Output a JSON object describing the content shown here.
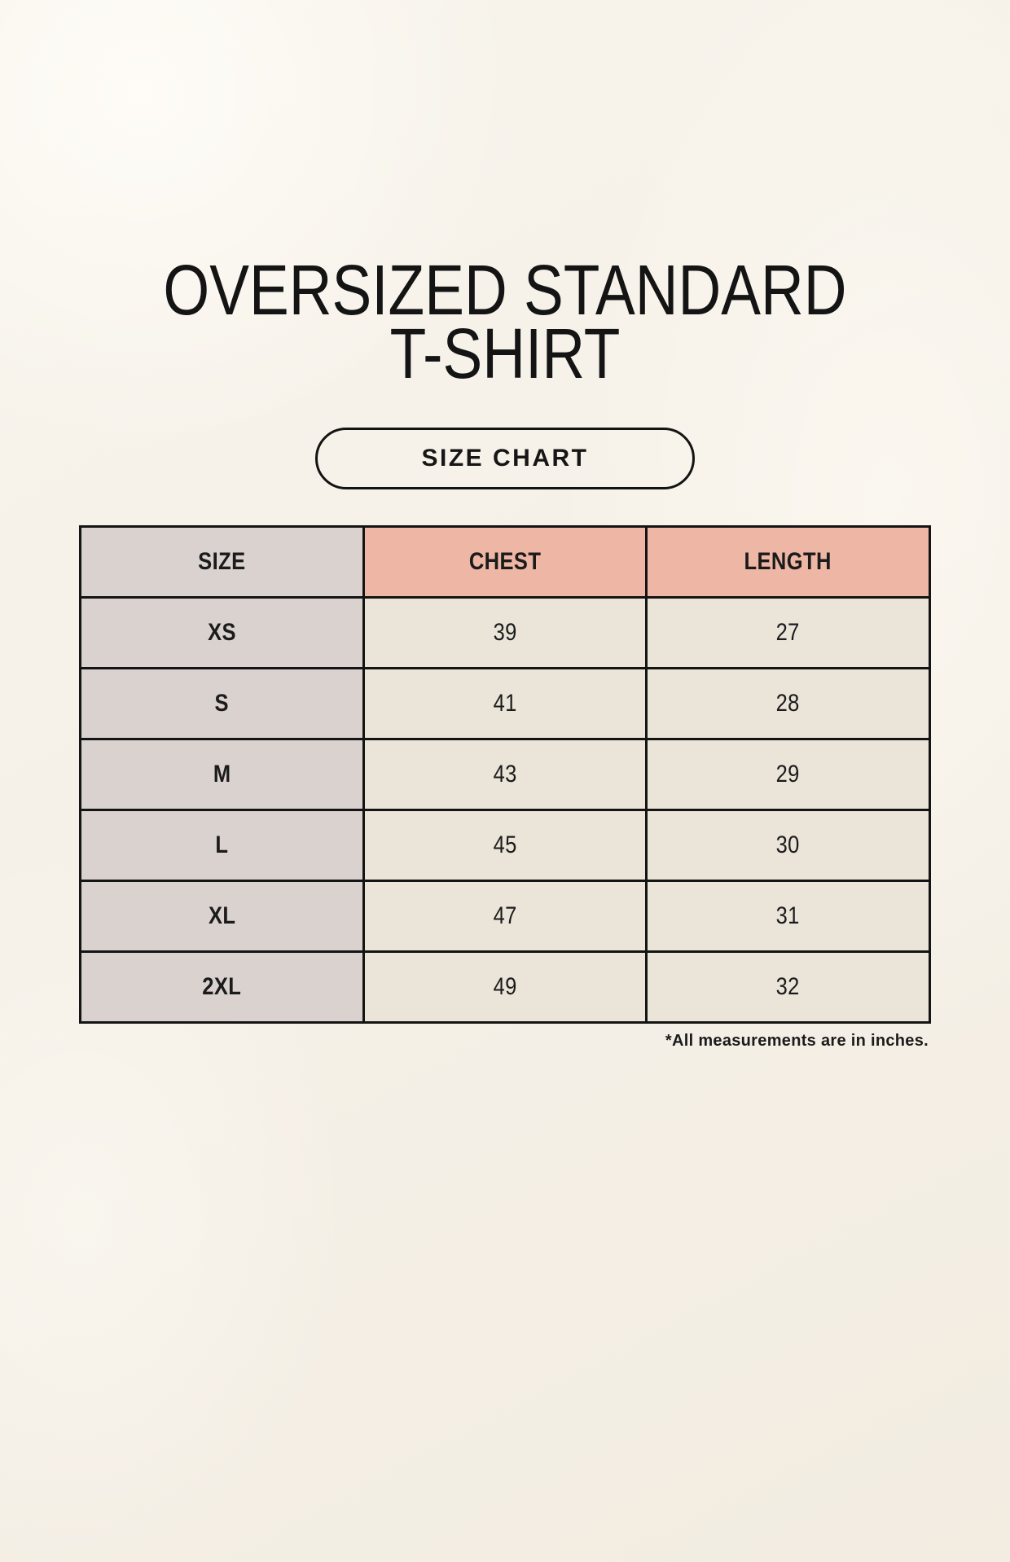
{
  "header": {
    "title_line1": "OVERSIZED STANDARD",
    "title_line2": "T-SHIRT",
    "button_label": "SIZE CHART"
  },
  "chart_data": {
    "type": "table",
    "title": "OVERSIZED STANDARD T-SHIRT",
    "columns": [
      "SIZE",
      "CHEST",
      "LENGTH"
    ],
    "rows": [
      [
        "XS",
        "39",
        "27"
      ],
      [
        "S",
        "41",
        "28"
      ],
      [
        "M",
        "43",
        "29"
      ],
      [
        "L",
        "45",
        "30"
      ],
      [
        "XL",
        "47",
        "31"
      ],
      [
        "2XL",
        "49",
        "32"
      ]
    ],
    "footnote": "*All measurements are in inches.",
    "units": "inches"
  },
  "colors": {
    "background": "#f5f0e7",
    "size_column_bg": "#d9d2ce",
    "measure_header_bg": "#eeb6a4",
    "data_cell_bg": "#eae4d9",
    "border": "#141414",
    "text": "#1b1b1b"
  }
}
